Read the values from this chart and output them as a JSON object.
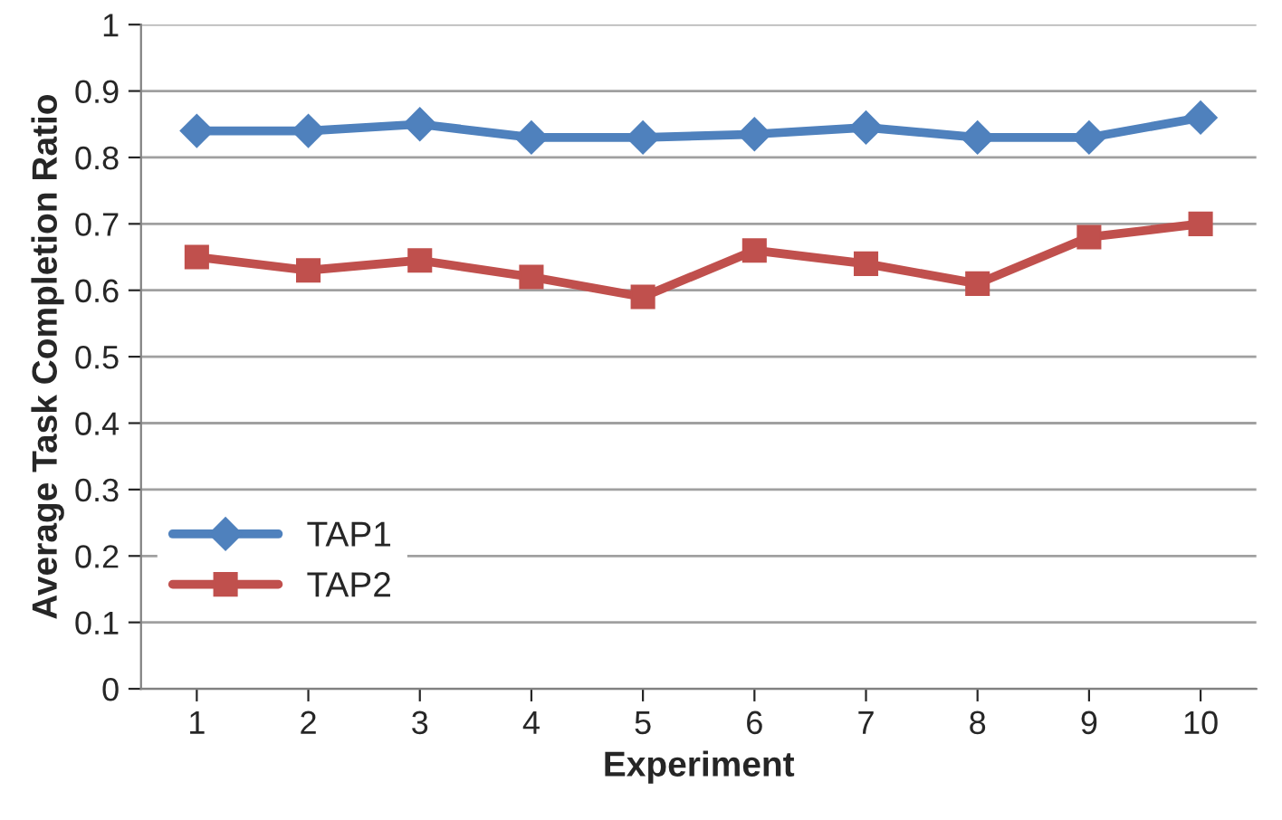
{
  "chart_data": {
    "type": "line",
    "xlabel": "Experiment",
    "ylabel": "Average Task Completion Ratio",
    "categories": [
      "1",
      "2",
      "3",
      "4",
      "5",
      "6",
      "7",
      "8",
      "9",
      "10"
    ],
    "series": [
      {
        "name": "TAP1",
        "color": "#4f81bd",
        "marker": "diamond",
        "values": [
          0.84,
          0.84,
          0.85,
          0.83,
          0.83,
          0.835,
          0.845,
          0.83,
          0.83,
          0.86
        ]
      },
      {
        "name": "TAP2",
        "color": "#c0504d",
        "marker": "square",
        "values": [
          0.65,
          0.63,
          0.645,
          0.62,
          0.59,
          0.66,
          0.64,
          0.61,
          0.68,
          0.7
        ]
      }
    ],
    "ylim": [
      0,
      1
    ],
    "yticks": [
      0,
      0.1,
      0.2,
      0.3,
      0.4,
      0.5,
      0.6,
      0.7,
      0.8,
      0.9,
      1
    ],
    "grid": "y",
    "legend": "lower left",
    "line_style": "solid"
  }
}
